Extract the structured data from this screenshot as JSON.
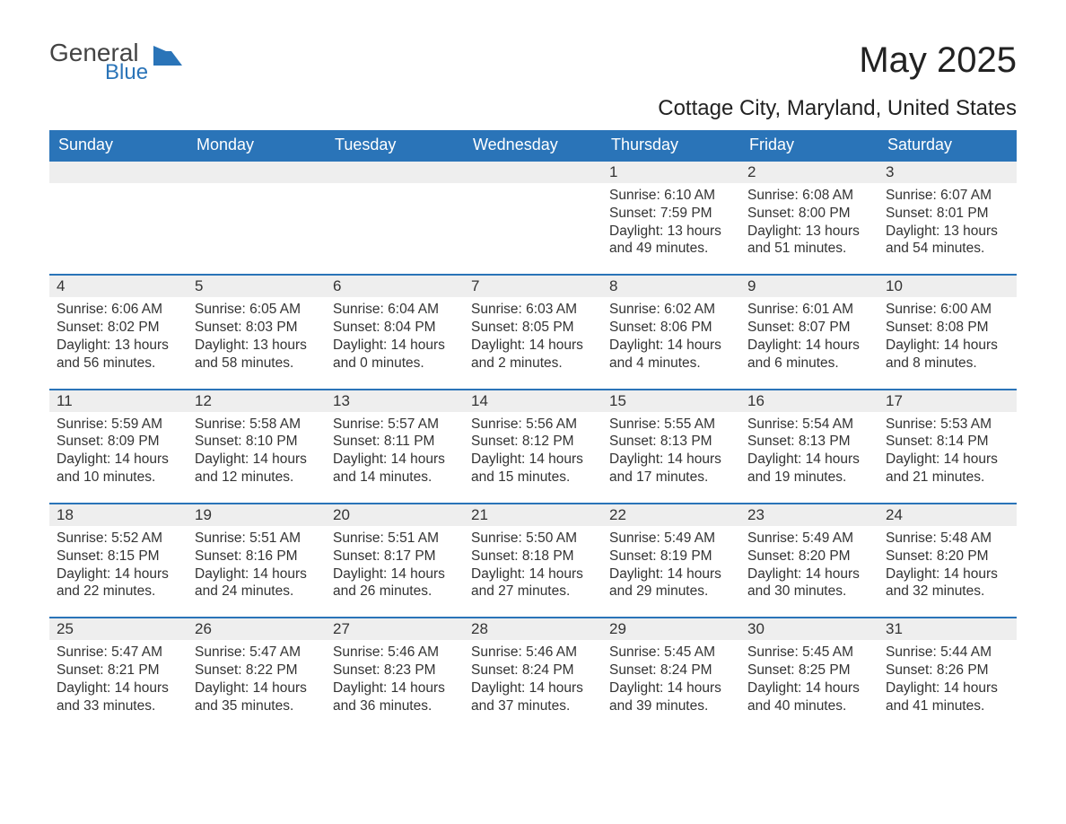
{
  "logo": {
    "text1": "General",
    "text2": "Blue",
    "shape_color": "#2a74b8"
  },
  "title": "May 2025",
  "location": "Cottage City, Maryland, United States",
  "colors": {
    "header_bg": "#2a74b8",
    "header_text": "#ffffff",
    "daynum_bg": "#eeeeee",
    "row_divider": "#2a74b8",
    "text": "#333333",
    "background": "#ffffff"
  },
  "fonts": {
    "base_family": "Arial",
    "title_size_pt": 40,
    "location_size_pt": 24,
    "header_size_pt": 18,
    "cell_size_pt": 15.5
  },
  "weekdays": [
    "Sunday",
    "Monday",
    "Tuesday",
    "Wednesday",
    "Thursday",
    "Friday",
    "Saturday"
  ],
  "leading_blanks": 4,
  "days": [
    {
      "n": "1",
      "sunrise": "6:10 AM",
      "sunset": "7:59 PM",
      "daylight_h": "13",
      "daylight_m": "49"
    },
    {
      "n": "2",
      "sunrise": "6:08 AM",
      "sunset": "8:00 PM",
      "daylight_h": "13",
      "daylight_m": "51"
    },
    {
      "n": "3",
      "sunrise": "6:07 AM",
      "sunset": "8:01 PM",
      "daylight_h": "13",
      "daylight_m": "54"
    },
    {
      "n": "4",
      "sunrise": "6:06 AM",
      "sunset": "8:02 PM",
      "daylight_h": "13",
      "daylight_m": "56"
    },
    {
      "n": "5",
      "sunrise": "6:05 AM",
      "sunset": "8:03 PM",
      "daylight_h": "13",
      "daylight_m": "58"
    },
    {
      "n": "6",
      "sunrise": "6:04 AM",
      "sunset": "8:04 PM",
      "daylight_h": "14",
      "daylight_m": "0"
    },
    {
      "n": "7",
      "sunrise": "6:03 AM",
      "sunset": "8:05 PM",
      "daylight_h": "14",
      "daylight_m": "2"
    },
    {
      "n": "8",
      "sunrise": "6:02 AM",
      "sunset": "8:06 PM",
      "daylight_h": "14",
      "daylight_m": "4"
    },
    {
      "n": "9",
      "sunrise": "6:01 AM",
      "sunset": "8:07 PM",
      "daylight_h": "14",
      "daylight_m": "6"
    },
    {
      "n": "10",
      "sunrise": "6:00 AM",
      "sunset": "8:08 PM",
      "daylight_h": "14",
      "daylight_m": "8"
    },
    {
      "n": "11",
      "sunrise": "5:59 AM",
      "sunset": "8:09 PM",
      "daylight_h": "14",
      "daylight_m": "10"
    },
    {
      "n": "12",
      "sunrise": "5:58 AM",
      "sunset": "8:10 PM",
      "daylight_h": "14",
      "daylight_m": "12"
    },
    {
      "n": "13",
      "sunrise": "5:57 AM",
      "sunset": "8:11 PM",
      "daylight_h": "14",
      "daylight_m": "14"
    },
    {
      "n": "14",
      "sunrise": "5:56 AM",
      "sunset": "8:12 PM",
      "daylight_h": "14",
      "daylight_m": "15"
    },
    {
      "n": "15",
      "sunrise": "5:55 AM",
      "sunset": "8:13 PM",
      "daylight_h": "14",
      "daylight_m": "17"
    },
    {
      "n": "16",
      "sunrise": "5:54 AM",
      "sunset": "8:13 PM",
      "daylight_h": "14",
      "daylight_m": "19"
    },
    {
      "n": "17",
      "sunrise": "5:53 AM",
      "sunset": "8:14 PM",
      "daylight_h": "14",
      "daylight_m": "21"
    },
    {
      "n": "18",
      "sunrise": "5:52 AM",
      "sunset": "8:15 PM",
      "daylight_h": "14",
      "daylight_m": "22"
    },
    {
      "n": "19",
      "sunrise": "5:51 AM",
      "sunset": "8:16 PM",
      "daylight_h": "14",
      "daylight_m": "24"
    },
    {
      "n": "20",
      "sunrise": "5:51 AM",
      "sunset": "8:17 PM",
      "daylight_h": "14",
      "daylight_m": "26"
    },
    {
      "n": "21",
      "sunrise": "5:50 AM",
      "sunset": "8:18 PM",
      "daylight_h": "14",
      "daylight_m": "27"
    },
    {
      "n": "22",
      "sunrise": "5:49 AM",
      "sunset": "8:19 PM",
      "daylight_h": "14",
      "daylight_m": "29"
    },
    {
      "n": "23",
      "sunrise": "5:49 AM",
      "sunset": "8:20 PM",
      "daylight_h": "14",
      "daylight_m": "30"
    },
    {
      "n": "24",
      "sunrise": "5:48 AM",
      "sunset": "8:20 PM",
      "daylight_h": "14",
      "daylight_m": "32"
    },
    {
      "n": "25",
      "sunrise": "5:47 AM",
      "sunset": "8:21 PM",
      "daylight_h": "14",
      "daylight_m": "33"
    },
    {
      "n": "26",
      "sunrise": "5:47 AM",
      "sunset": "8:22 PM",
      "daylight_h": "14",
      "daylight_m": "35"
    },
    {
      "n": "27",
      "sunrise": "5:46 AM",
      "sunset": "8:23 PM",
      "daylight_h": "14",
      "daylight_m": "36"
    },
    {
      "n": "28",
      "sunrise": "5:46 AM",
      "sunset": "8:24 PM",
      "daylight_h": "14",
      "daylight_m": "37"
    },
    {
      "n": "29",
      "sunrise": "5:45 AM",
      "sunset": "8:24 PM",
      "daylight_h": "14",
      "daylight_m": "39"
    },
    {
      "n": "30",
      "sunrise": "5:45 AM",
      "sunset": "8:25 PM",
      "daylight_h": "14",
      "daylight_m": "40"
    },
    {
      "n": "31",
      "sunrise": "5:44 AM",
      "sunset": "8:26 PM",
      "daylight_h": "14",
      "daylight_m": "41"
    }
  ],
  "labels": {
    "sunrise": "Sunrise:",
    "sunset": "Sunset:",
    "daylight": "Daylight:",
    "hours_word": "hours",
    "and_word": "and",
    "minutes_word": "minutes."
  }
}
